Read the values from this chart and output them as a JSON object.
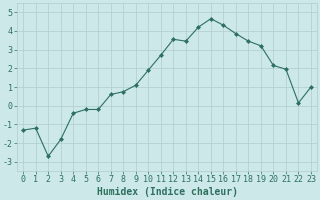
{
  "x": [
    0,
    1,
    2,
    3,
    4,
    5,
    6,
    7,
    8,
    9,
    10,
    11,
    12,
    13,
    14,
    15,
    16,
    17,
    18,
    19,
    20,
    21,
    22,
    23
  ],
  "y": [
    -1.3,
    -1.2,
    -2.7,
    -1.8,
    -0.4,
    -0.2,
    -0.2,
    0.6,
    0.75,
    1.1,
    1.9,
    2.7,
    3.55,
    3.45,
    4.2,
    4.65,
    4.3,
    3.85,
    3.45,
    3.2,
    2.15,
    1.95,
    0.15,
    1.0
  ],
  "xlabel": "Humidex (Indice chaleur)",
  "ylim": [
    -3.5,
    5.5
  ],
  "xlim": [
    -0.5,
    23.5
  ],
  "yticks": [
    -3,
    -2,
    -1,
    0,
    1,
    2,
    3,
    4,
    5
  ],
  "xticks": [
    0,
    1,
    2,
    3,
    4,
    5,
    6,
    7,
    8,
    9,
    10,
    11,
    12,
    13,
    14,
    15,
    16,
    17,
    18,
    19,
    20,
    21,
    22,
    23
  ],
  "line_color": "#2d7060",
  "marker": "D",
  "marker_size": 2.0,
  "bg_color": "#cce8e8",
  "grid_color_major": "#b0cccc",
  "grid_color_minor": "#c4dcdc",
  "xlabel_color": "#2d7060",
  "tick_color": "#2d7060",
  "xlabel_fontsize": 7,
  "tick_fontsize": 6,
  "linewidth": 0.8
}
